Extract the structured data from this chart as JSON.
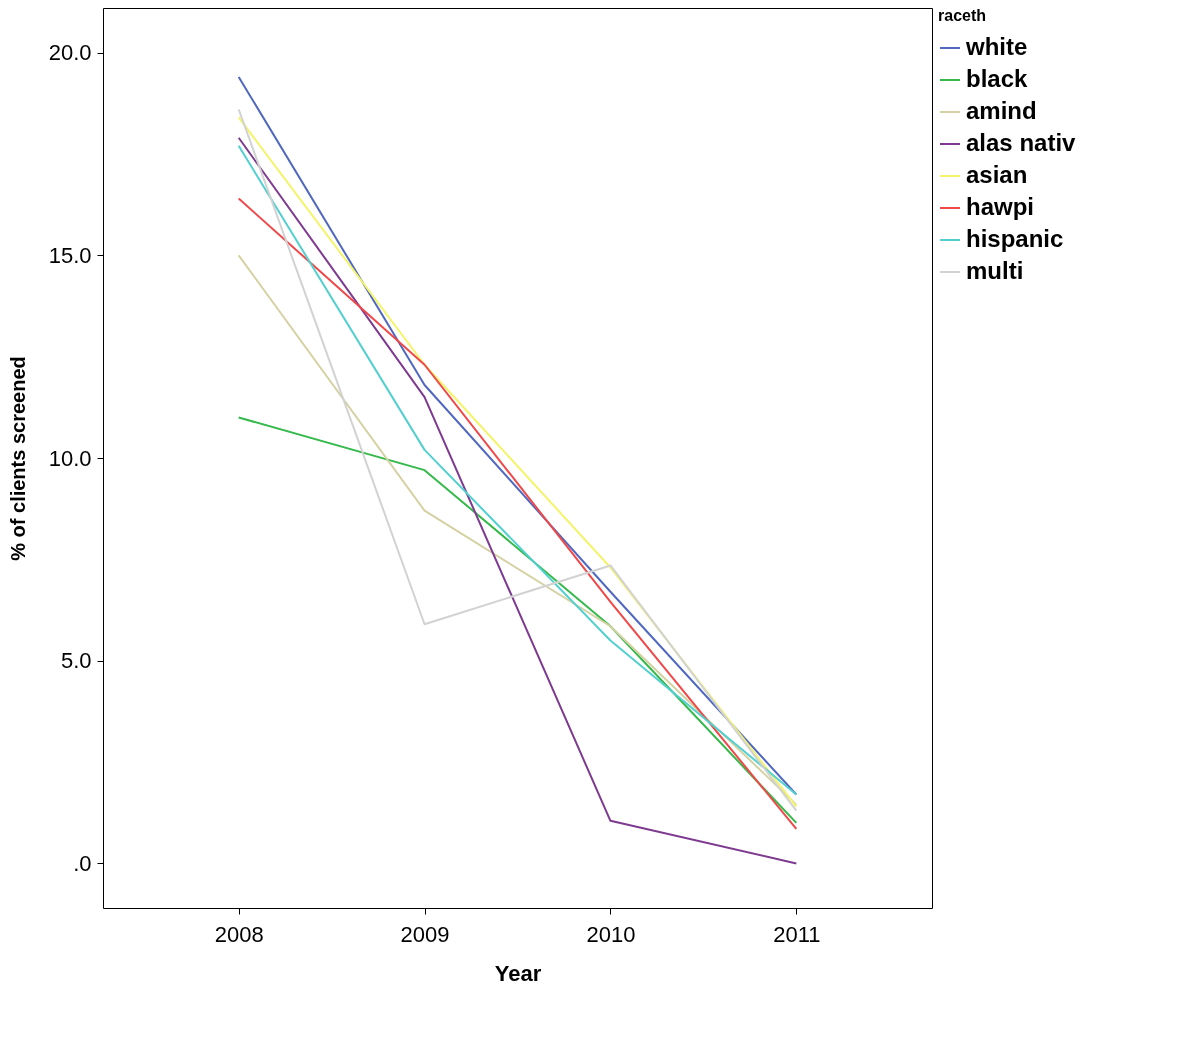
{
  "chart_data": {
    "type": "line",
    "xlabel": "Year",
    "ylabel": "% of clients screened",
    "legend_title": "raceth",
    "legend": "top right",
    "grid": false,
    "marker": "none",
    "line_style": "solid",
    "x": [
      2008,
      2009,
      2010,
      2011
    ],
    "xlim": [
      2007.27,
      2011.73
    ],
    "xticks": [
      2008,
      2009,
      2010,
      2011
    ],
    "ylim": [
      -1.1,
      21.1
    ],
    "yticks": [
      {
        "value": 0,
        "label": ".0"
      },
      {
        "value": 5,
        "label": "5.0"
      },
      {
        "value": 10,
        "label": "10.0"
      },
      {
        "value": 15,
        "label": "15.0"
      },
      {
        "value": 20,
        "label": "20.0"
      }
    ],
    "series": [
      {
        "name": "white",
        "color": "#5068c0",
        "values": [
          19.4,
          11.8,
          6.7,
          1.7
        ]
      },
      {
        "name": "black",
        "color": "#34b94a",
        "values": [
          11.0,
          9.7,
          5.85,
          1.0
        ]
      },
      {
        "name": "amind",
        "color": "#d4d1a2",
        "values": [
          15.0,
          8.7,
          5.85,
          1.45
        ]
      },
      {
        "name": "alas nativ",
        "color": "#7e3a90",
        "values": [
          17.9,
          11.5,
          1.05,
          0.0
        ]
      },
      {
        "name": "asian",
        "color": "#f4f46a",
        "values": [
          18.4,
          12.3,
          7.3,
          1.4
        ]
      },
      {
        "name": "hawpi",
        "color": "#f04848",
        "values": [
          16.4,
          12.3,
          6.45,
          0.85
        ]
      },
      {
        "name": "hispanic",
        "color": "#52d0d0",
        "values": [
          17.7,
          10.2,
          5.5,
          1.7
        ]
      },
      {
        "name": "multi",
        "color": "#d2d2d2",
        "values": [
          18.6,
          5.9,
          7.35,
          1.3
        ]
      }
    ]
  }
}
